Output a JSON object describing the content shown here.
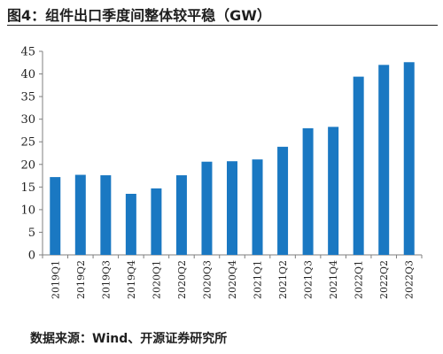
{
  "figure": {
    "title": "图4：组件出口季度间整体较平稳（GW）",
    "source": "数据来源：Wind、开源证券研究所"
  },
  "chart_data": {
    "type": "bar",
    "categories": [
      "2019Q1",
      "2019Q2",
      "2019Q3",
      "2019Q4",
      "2020Q1",
      "2020Q2",
      "2020Q3",
      "2020Q4",
      "2021Q1",
      "2021Q2",
      "2021Q3",
      "2021Q4",
      "2022Q1",
      "2022Q2",
      "2022Q3"
    ],
    "values": [
      17.2,
      17.7,
      17.6,
      13.5,
      14.7,
      17.6,
      20.6,
      20.7,
      21.1,
      23.9,
      28.0,
      28.3,
      39.4,
      42.0,
      42.6
    ],
    "title": "",
    "xlabel": "",
    "ylabel": "",
    "ylim": [
      0,
      45
    ],
    "yticks": [
      0,
      5,
      10,
      15,
      20,
      25,
      30,
      35,
      40,
      45
    ],
    "grid": false,
    "legend": "none",
    "bar_color": "#1a78c2"
  }
}
